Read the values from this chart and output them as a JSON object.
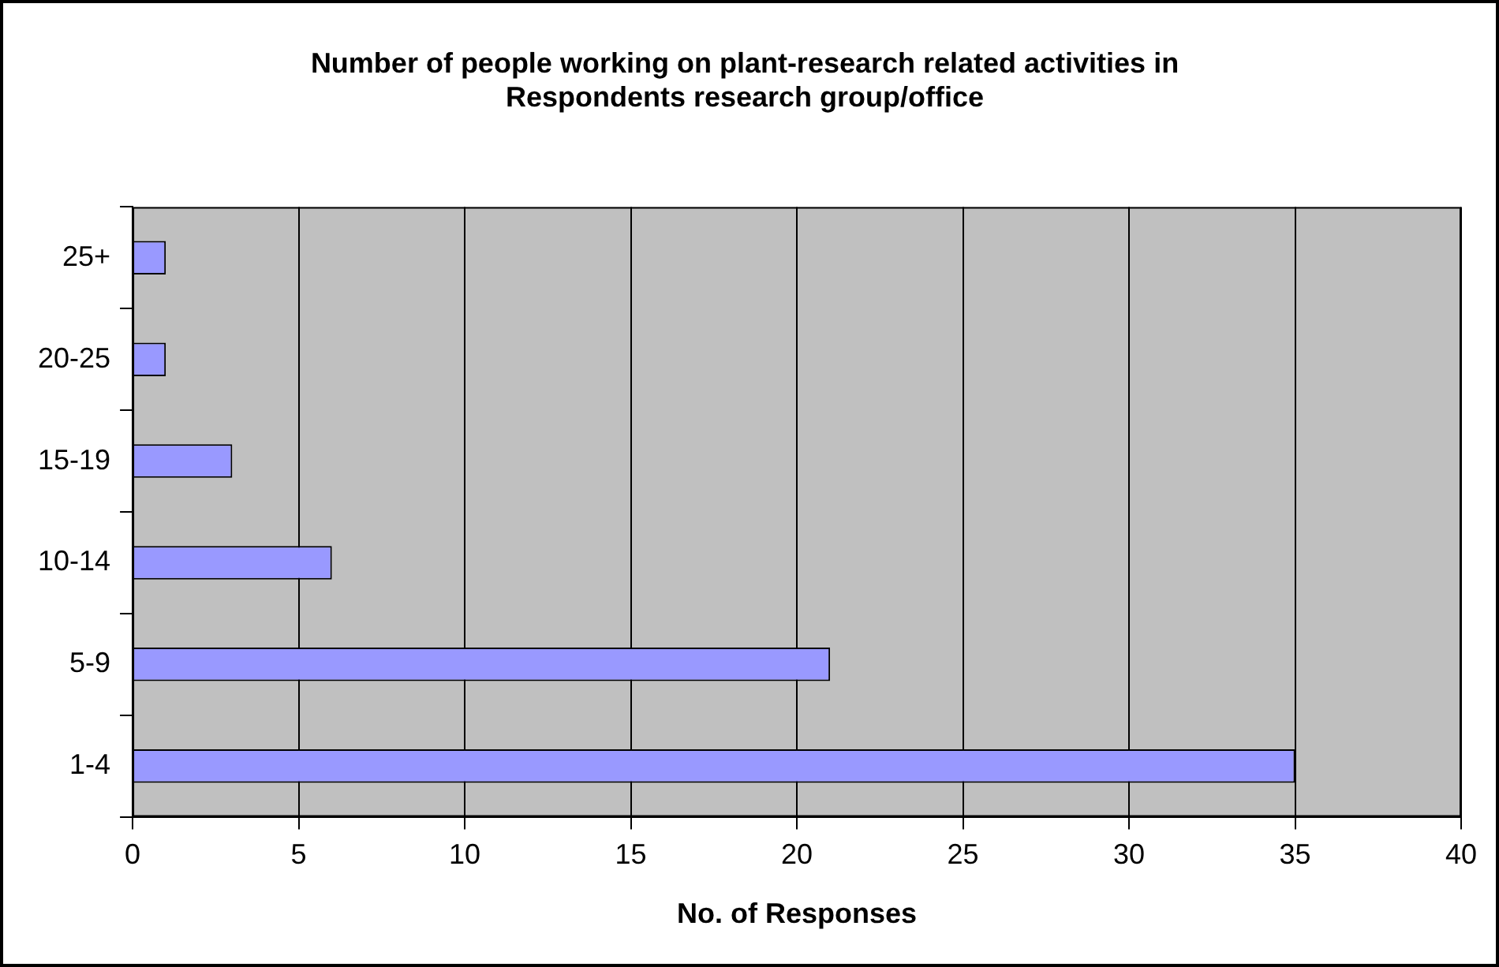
{
  "chart_data": {
    "type": "bar",
    "orientation": "horizontal",
    "title": "Number of people working on plant-research related activities in Respondents research group/office",
    "xlabel": "No. of Responses",
    "categories": [
      "25+",
      "20-25",
      "15-19",
      "10-14",
      "5-9",
      "1-4"
    ],
    "values": [
      1,
      1,
      3,
      6,
      21,
      35
    ],
    "color": "#9999ff",
    "xlim": [
      0,
      40
    ],
    "xticks": [
      0,
      5,
      10,
      15,
      20,
      25,
      30,
      35,
      40
    ],
    "grid": "x",
    "legend": false
  }
}
